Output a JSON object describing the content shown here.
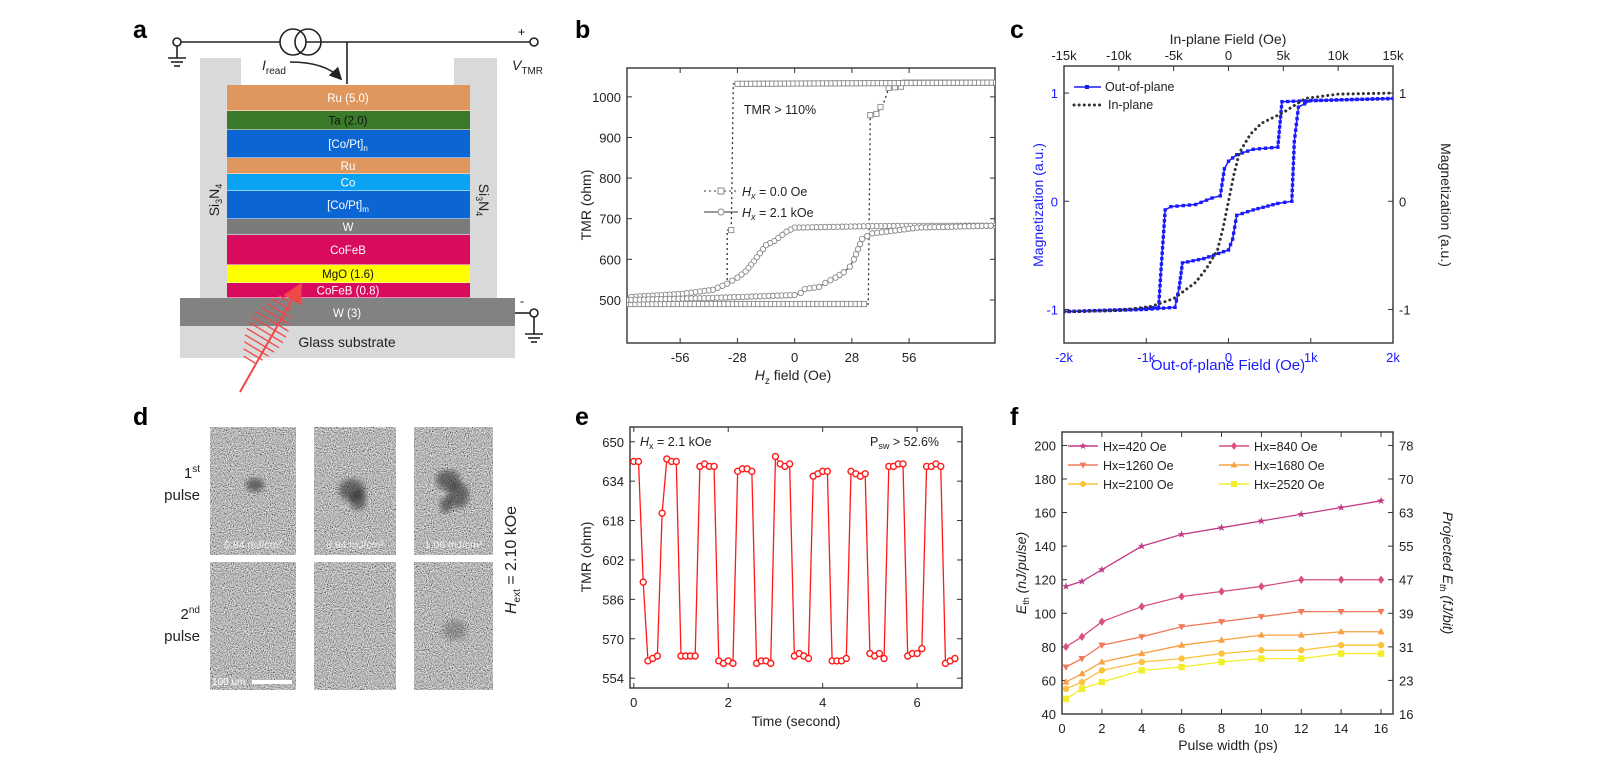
{
  "panel_labels": {
    "a": "a",
    "b": "b",
    "c": "c",
    "d": "d",
    "e": "e",
    "f": "f"
  },
  "panel_a": {
    "read_current_symbol": "I",
    "read_current_sub": "read",
    "voltage_symbol": "V",
    "voltage_sub": "TMR",
    "plus": "+",
    "minus": "-",
    "pillar_label": "Si",
    "pillar_sub1": "3",
    "pillar_mid": "N",
    "pillar_sub2": "4",
    "layers": [
      {
        "label": "Ru (5.0)",
        "sub": "",
        "color": "#e0975e",
        "text_color": "#ffffff"
      },
      {
        "label": "Ta (2.0)",
        "sub": "",
        "color": "#3b7a2a",
        "text_color": "#111111"
      },
      {
        "label": "[Co/Pt]",
        "sub": "n",
        "color": "#0b66d3",
        "text_color": "#ffffff"
      },
      {
        "label": "Ru",
        "sub": "",
        "color": "#e0975e",
        "text_color": "#ffffff"
      },
      {
        "label": "Co",
        "sub": "",
        "color": "#0aa2f2",
        "text_color": "#ffffff"
      },
      {
        "label": "[Co/Pt]",
        "sub": "m",
        "color": "#0b66d3",
        "text_color": "#ffffff"
      },
      {
        "label": "W",
        "sub": "",
        "color": "#7b7b7b",
        "text_color": "#ffffff"
      },
      {
        "label": "CoFeB",
        "sub": "",
        "color": "#d90b5e",
        "text_color": "#ffffff"
      },
      {
        "label": "MgO (1.6)",
        "sub": "",
        "color": "#ffff00",
        "text_color": "#111111"
      },
      {
        "label": "CoFeB (0.8)",
        "sub": "",
        "color": "#d90b5e",
        "text_color": "#ffffff"
      }
    ],
    "bottom_electrode": {
      "label": "W (3)",
      "color": "#828282"
    },
    "substrate": {
      "label": "Glass substrate",
      "color": "#d9d9d9"
    },
    "laser_color": "#f04848"
  },
  "panel_d": {
    "row_labels": [
      {
        "num": "1",
        "sup": "st",
        "word": "pulse"
      },
      {
        "num": "2",
        "sup": "nd",
        "word": "pulse"
      }
    ],
    "fluences": [
      "0.84 mJ/cm²",
      "0.94 mJ/cm²",
      "1.06 mJ/cm²"
    ],
    "scale_bar": "100 um",
    "field_symbol": "H",
    "field_sub": "ext",
    "field_value": " = 2.10 kOe"
  },
  "legends": {
    "b": [
      {
        "var": "H",
        "sub": "x",
        "rest": " = 0.0 Oe"
      },
      {
        "var": "H",
        "sub": "x",
        "rest": " = 2.1 kOe"
      }
    ],
    "c": [
      "Out-of-plane",
      "In-plane"
    ]
  },
  "chart_data": [
    {
      "panel": "b",
      "type": "scatter",
      "xlabel_var": "H",
      "xlabel_sub": "z",
      "xlabel_rest": " field (Oe)",
      "ylabel": "TMR (ohm)",
      "xlim": [
        -82,
        98
      ],
      "ylim": [
        394,
        1071
      ],
      "xticks": [
        -56,
        -28,
        0,
        28,
        56
      ],
      "yticks": [
        500,
        600,
        700,
        800,
        900,
        1000
      ],
      "annotation": "TMR > 110%",
      "series": [
        {
          "name": "Hx = 0.0 Oe",
          "style": "dotted",
          "marker": "square",
          "color": "#8a8a8a",
          "branches": [
            [
              [
                -82,
                490
              ],
              [
                36,
                490
              ],
              [
                37,
                955
              ],
              [
                40,
                958
              ],
              [
                42,
                975
              ],
              [
                44,
                990
              ],
              [
                46,
                1022
              ],
              [
                52,
                1025
              ],
              [
                54,
                1035
              ],
              [
                98,
                1035
              ]
            ],
            [
              [
                98,
                1035
              ],
              [
                -30,
                1032
              ],
              [
                -31,
                672
              ],
              [
                -33,
                672
              ],
              [
                -33,
                530
              ]
            ]
          ]
        },
        {
          "name": "Hx = 2.1 kOe",
          "style": "solid",
          "marker": "circle",
          "color": "#8a8a8a",
          "branches": [
            [
              [
                98,
                683
              ],
              [
                40,
                682
              ],
              [
                0,
                678
              ],
              [
                -4,
                668
              ],
              [
                -10,
                645
              ],
              [
                -14,
                635
              ],
              [
                -17,
                615
              ],
              [
                -20,
                595
              ],
              [
                -24,
                570
              ],
              [
                -28,
                555
              ],
              [
                -33,
                540
              ],
              [
                -40,
                525
              ],
              [
                -55,
                515
              ],
              [
                -82,
                507
              ]
            ],
            [
              [
                -82,
                500
              ],
              [
                -40,
                505
              ],
              [
                0,
                512
              ],
              [
                3,
                517
              ],
              [
                5,
                527
              ],
              [
                12,
                532
              ],
              [
                15,
                542
              ],
              [
                20,
                555
              ],
              [
                24,
                568
              ],
              [
                27,
                582
              ],
              [
                29,
                600
              ],
              [
                31,
                625
              ],
              [
                33,
                650
              ],
              [
                38,
                664
              ],
              [
                45,
                668
              ],
              [
                60,
                678
              ],
              [
                98,
                683
              ]
            ]
          ]
        }
      ]
    },
    {
      "panel": "c",
      "type": "line",
      "xlabel": "Out-of-plane Field (Oe)",
      "ylabel": "Magnetization (a.u.)",
      "ylabel_right": "Magnetization (a.u.)",
      "x_axis_color": "#1a1aff",
      "xlim": [
        -2000,
        2000
      ],
      "ylim": [
        -1.31,
        1.25
      ],
      "xticks": [
        -2000,
        -1000,
        0,
        1000,
        2000
      ],
      "xtick_labels": [
        "-2k",
        "-1k",
        "0",
        "1k",
        "2k"
      ],
      "yticks": [
        -1,
        0,
        1
      ],
      "top_axis": {
        "label": "In-plane Field (Oe)",
        "lim": [
          -15000,
          15000
        ],
        "ticks": [
          -15000,
          -10000,
          -5000,
          0,
          5000,
          10000,
          15000
        ],
        "labels": [
          "-15k",
          "-10k",
          "-5k",
          "0",
          "5k",
          "10k",
          "15k"
        ]
      },
      "right_axis": {
        "ticks": [
          -1,
          0,
          1
        ],
        "labels": [
          "-1",
          "0",
          "1"
        ]
      },
      "series": [
        {
          "name": "Out-of-plane",
          "style": "solid",
          "marker": "square",
          "color": "#1a1aff",
          "axis": "bottom",
          "branches": [
            [
              [
                2000,
                0.95
              ],
              [
                1000,
                0.93
              ],
              [
                650,
                0.92
              ],
              [
                600,
                0.5
              ],
              [
                300,
                0.48
              ],
              [
                100,
                0.43
              ],
              [
                0,
                0.37
              ],
              [
                -50,
                0.3
              ],
              [
                -100,
                0.05
              ],
              [
                -200,
                0.03
              ],
              [
                -400,
                -0.03
              ],
              [
                -700,
                -0.05
              ],
              [
                -770,
                -0.08
              ],
              [
                -820,
                -0.63
              ],
              [
                -850,
                -0.98
              ],
              [
                -1200,
                -1.0
              ],
              [
                -2000,
                -1.02
              ]
            ],
            [
              [
                -2000,
                -1.02
              ],
              [
                -1000,
                -1.0
              ],
              [
                -650,
                -0.98
              ],
              [
                -600,
                -0.8
              ],
              [
                -560,
                -0.57
              ],
              [
                -300,
                -0.53
              ],
              [
                0,
                -0.45
              ],
              [
                50,
                -0.35
              ],
              [
                100,
                -0.13
              ],
              [
                300,
                -0.08
              ],
              [
                600,
                -0.02
              ],
              [
                770,
                0.0
              ],
              [
                800,
                0.55
              ],
              [
                850,
                0.87
              ],
              [
                1000,
                0.93
              ],
              [
                2000,
                0.95
              ]
            ]
          ]
        },
        {
          "name": "In-plane",
          "style": "dotted",
          "marker": "none",
          "color": "#333333",
          "axis": "top",
          "branches": [
            [
              [
                -15000,
                -1.02
              ],
              [
                -10000,
                -1.01
              ],
              [
                -7000,
                -0.97
              ],
              [
                -5000,
                -0.9
              ],
              [
                -3000,
                -0.75
              ],
              [
                -2000,
                -0.62
              ],
              [
                -1000,
                -0.45
              ],
              [
                -500,
                -0.25
              ],
              [
                0,
                0
              ],
              [
                500,
                0.25
              ],
              [
                1000,
                0.45
              ],
              [
                2000,
                0.62
              ],
              [
                3000,
                0.72
              ],
              [
                5000,
                0.82
              ],
              [
                7000,
                0.95
              ],
              [
                10000,
                0.99
              ],
              [
                15000,
                1.0
              ]
            ]
          ]
        }
      ]
    },
    {
      "panel": "e",
      "type": "line",
      "xlabel": "Time (second)",
      "ylabel": "TMR (ohm)",
      "xlim": [
        -0.08,
        6.95
      ],
      "ylim": [
        550,
        656
      ],
      "xticks": [
        0,
        2,
        4,
        6
      ],
      "yticks": [
        554,
        570,
        586,
        602,
        618,
        634,
        650
      ],
      "annotation_left_var": "H",
      "annotation_left_sub": "x",
      "annotation_left_rest": " = 2.1 kOe",
      "annotation_right_main": "P",
      "annotation_right_sub": "sw",
      "annotation_right_rest": " > 52.6%",
      "series": [
        {
          "style": "solid",
          "marker": "open-circle",
          "color": "#ff1a1a",
          "x": [
            0,
            0.1,
            0.2,
            0.3,
            0.4,
            0.5,
            0.6,
            0.7,
            0.8,
            0.9,
            1.0,
            1.1,
            1.2,
            1.3,
            1.4,
            1.5,
            1.6,
            1.7,
            1.8,
            1.9,
            2.0,
            2.1,
            2.2,
            2.3,
            2.4,
            2.5,
            2.6,
            2.7,
            2.8,
            2.9,
            3.0,
            3.1,
            3.2,
            3.3,
            3.4,
            3.5,
            3.6,
            3.7,
            3.8,
            3.9,
            4.0,
            4.1,
            4.2,
            4.3,
            4.4,
            4.5,
            4.6,
            4.7,
            4.8,
            4.9,
            5.0,
            5.1,
            5.2,
            5.3,
            5.4,
            5.5,
            5.6,
            5.7,
            5.8,
            5.9,
            6.0,
            6.1,
            6.2,
            6.3,
            6.4,
            6.5,
            6.6,
            6.7,
            6.8
          ],
          "y": [
            642,
            642,
            593,
            561,
            562,
            563,
            621,
            643,
            642,
            642,
            563,
            563,
            563,
            563,
            640,
            641,
            640,
            640,
            561,
            560,
            561,
            560,
            638,
            639,
            639,
            638,
            560,
            561,
            561,
            560,
            644,
            641,
            640,
            641,
            563,
            564,
            563,
            562,
            636,
            637,
            638,
            638,
            561,
            561,
            561,
            562,
            638,
            637,
            636,
            637,
            564,
            563,
            564,
            562,
            640,
            640,
            641,
            641,
            563,
            564,
            564,
            566,
            640,
            640,
            641,
            640,
            560,
            561,
            562
          ]
        }
      ]
    },
    {
      "panel": "f",
      "type": "line",
      "xlabel": "Pulse width (ps)",
      "ylabel_main": "E",
      "ylabel_sub": "th",
      "ylabel_rest": " (nJ/pulse)",
      "ylabel_right_main": "Projected E",
      "ylabel_right_sub": "th",
      "ylabel_right_rest": " (fJ/bit)",
      "xlim": [
        0,
        16.6
      ],
      "ylim": [
        40,
        208
      ],
      "xticks": [
        0,
        2,
        4,
        6,
        8,
        10,
        12,
        14,
        16
      ],
      "yticks": [
        40,
        60,
        80,
        100,
        120,
        140,
        160,
        180,
        200
      ],
      "right_axis": {
        "ticks": [
          40,
          60,
          80,
          100,
          120,
          140,
          160,
          180,
          200
        ],
        "labels": [
          "16",
          "23",
          "31",
          "39",
          "47",
          "55",
          "63",
          "70",
          "78"
        ]
      },
      "x": [
        0.2,
        1,
        2,
        4,
        6,
        8,
        10,
        12,
        14,
        16
      ],
      "series": [
        {
          "name": "Hx=420 Oe",
          "marker": "star",
          "color": "#c23a86",
          "values": [
            116,
            119,
            126,
            140,
            147,
            151,
            155,
            159,
            163,
            167
          ]
        },
        {
          "name": "Hx=840 Oe",
          "marker": "diamond",
          "color": "#d9507a",
          "values": [
            80,
            86,
            95,
            104,
            110,
            113,
            116,
            120,
            120,
            120
          ]
        },
        {
          "name": "Hx=1260 Oe",
          "marker": "down-triangle",
          "color": "#f07a5a",
          "values": [
            68,
            73,
            81,
            86,
            92,
            95,
            98,
            101,
            101,
            101
          ]
        },
        {
          "name": "Hx=1680 Oe",
          "marker": "triangle",
          "color": "#f8a042",
          "values": [
            59,
            64,
            71,
            76,
            81,
            84,
            87,
            87,
            89,
            89
          ]
        },
        {
          "name": "Hx=2100 Oe",
          "marker": "circle",
          "color": "#fcc33c",
          "values": [
            55,
            59,
            66,
            71,
            73,
            76,
            78,
            78,
            81,
            81
          ]
        },
        {
          "name": "Hx=2520 Oe",
          "marker": "square",
          "color": "#f2ee2e",
          "values": [
            49,
            55,
            59,
            66,
            68,
            71,
            73,
            73,
            76,
            76
          ]
        }
      ]
    }
  ]
}
